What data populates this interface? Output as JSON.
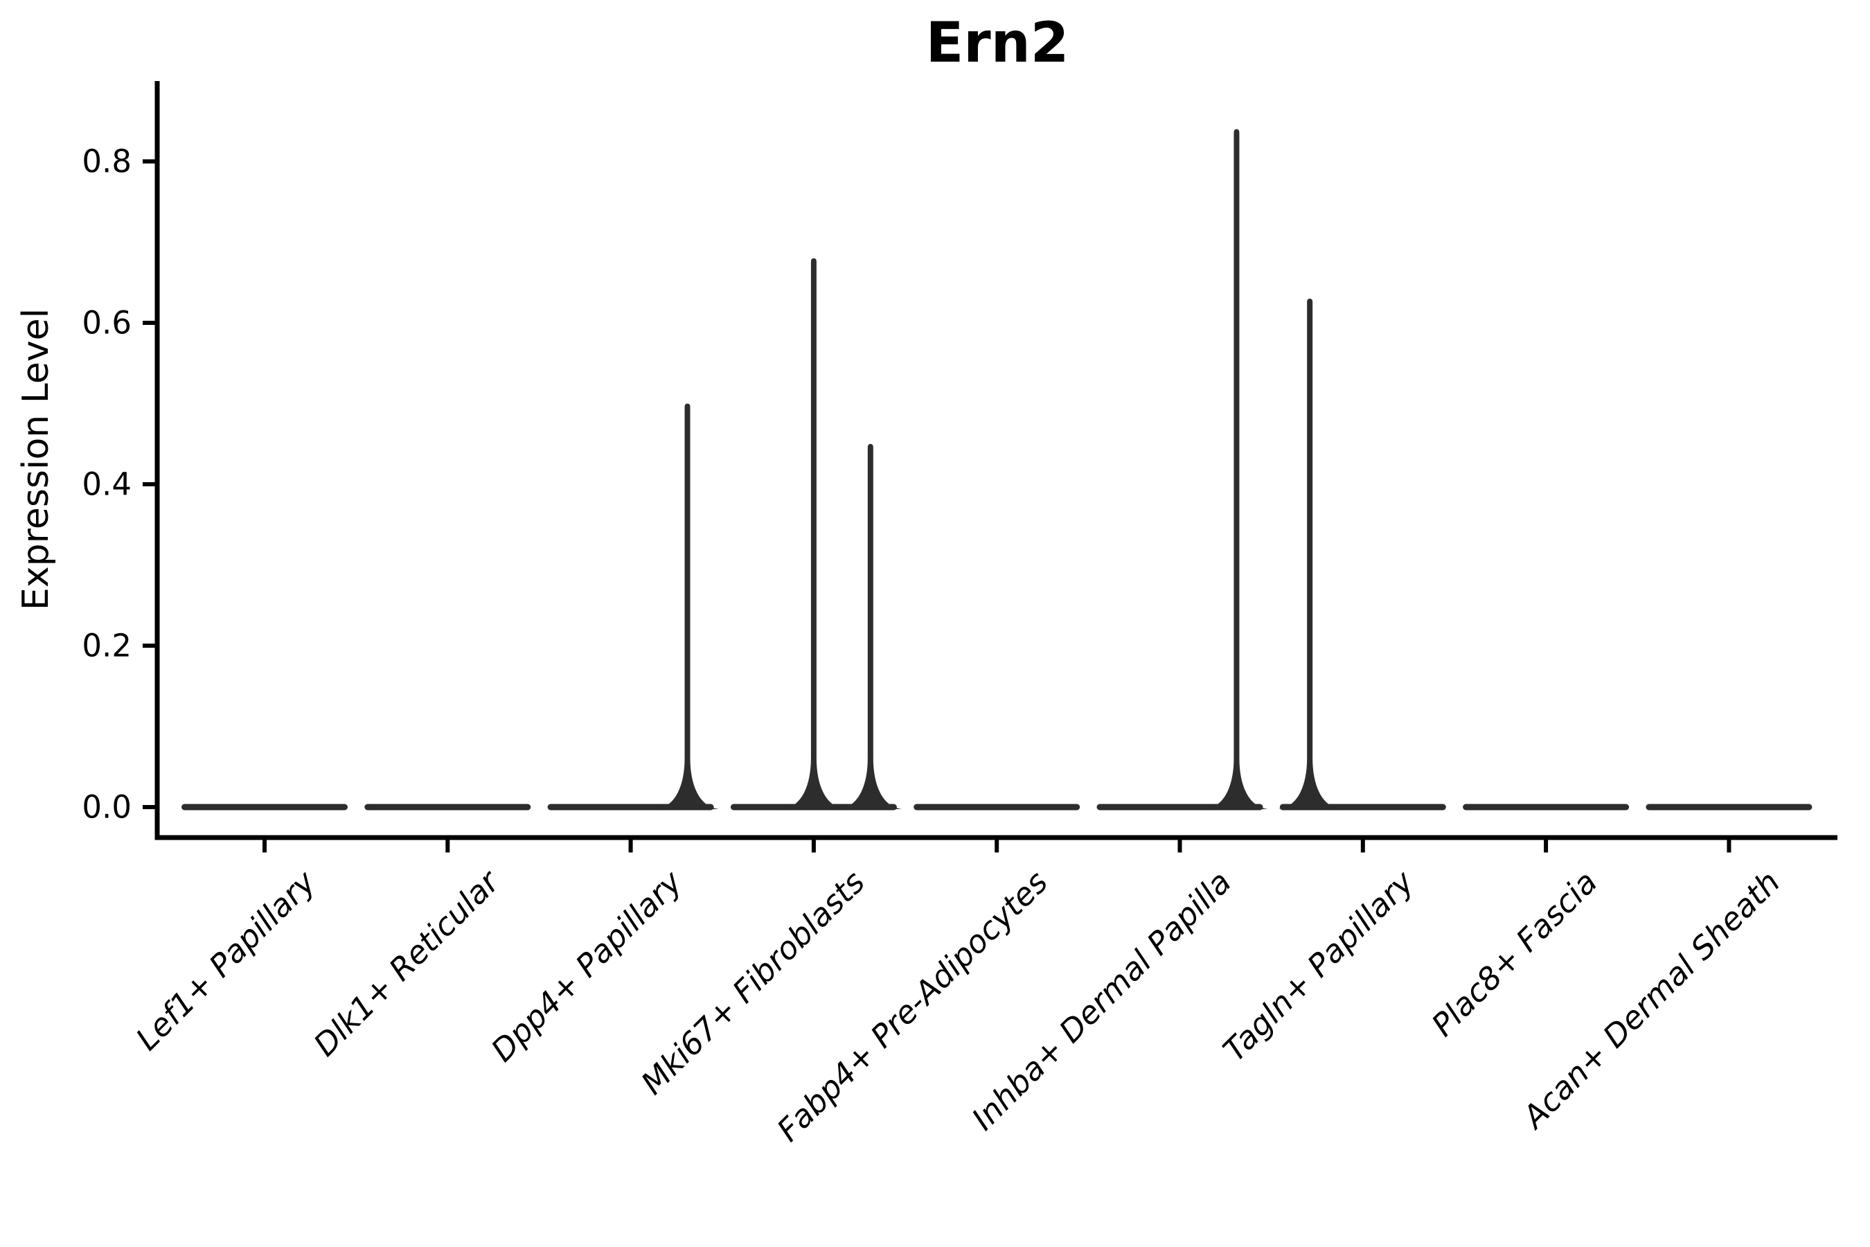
{
  "title": "Ern2",
  "y_axis": {
    "label": "Expression Level",
    "tick_labels": [
      "0.0",
      "0.2",
      "0.4",
      "0.6",
      "0.8"
    ],
    "tick_values": [
      0.0,
      0.2,
      0.4,
      0.6,
      0.8
    ]
  },
  "x_axis": {
    "categories": [
      "Lef1+ Papillary",
      "Dlk1+ Reticular",
      "Dpp4+ Papillary",
      "Mki67+ Fibroblasts",
      "Fabp4+ Pre-Adipocytes",
      "Inhba+ Dermal Papilla",
      "Tagln+ Papillary",
      "Plac8+ Fascia",
      "Acan+ Dermal Sheath"
    ]
  },
  "colors": {
    "violin": "#2d2d2d",
    "axis": "#000000",
    "text": "#000000",
    "background": "#ffffff"
  },
  "chart_data": {
    "type": "violin",
    "title": "Ern2",
    "xlabel": "",
    "ylabel": "Expression Level",
    "categories": [
      "Lef1+ Papillary",
      "Dlk1+ Reticular",
      "Dpp4+ Papillary",
      "Mki67+ Fibroblasts",
      "Fabp4+ Pre-Adipocytes",
      "Inhba+ Dermal Papilla",
      "Tagln+ Papillary",
      "Plac8+ Fascia",
      "Acan+ Dermal Sheath"
    ],
    "y_ticks": [
      0.0,
      0.2,
      0.4,
      0.6,
      0.8
    ],
    "ylim": [
      -0.025,
      0.9
    ],
    "grid": false,
    "legend": "none",
    "description": "Mostly zero expression in all categories (flat violins at 0); thin violin spikes mark maximum expression values.",
    "violins": [
      {
        "category": "Lef1+ Papillary",
        "baseline_value": 0,
        "spikes": []
      },
      {
        "category": "Dlk1+ Reticular",
        "baseline_value": 0,
        "spikes": []
      },
      {
        "category": "Dpp4+ Papillary",
        "baseline_value": 0,
        "spikes": [
          {
            "value": 0.5,
            "dx_frac": 0.31
          }
        ]
      },
      {
        "category": "Mki67+ Fibroblasts",
        "baseline_value": 0,
        "spikes": [
          {
            "value": 0.68,
            "dx_frac": 0.0
          },
          {
            "value": 0.45,
            "dx_frac": 0.31
          }
        ]
      },
      {
        "category": "Fabp4+ Pre-Adipocytes",
        "baseline_value": 0,
        "spikes": []
      },
      {
        "category": "Inhba+ Dermal Papilla",
        "baseline_value": 0,
        "spikes": [
          {
            "value": 0.84,
            "dx_frac": 0.31
          }
        ]
      },
      {
        "category": "Tagln+ Papillary",
        "baseline_value": 0,
        "spikes": [
          {
            "value": 0.63,
            "dx_frac": -0.29
          }
        ]
      },
      {
        "category": "Plac8+ Fascia",
        "baseline_value": 0,
        "spikes": []
      },
      {
        "category": "Acan+ Dermal Sheath",
        "baseline_value": 0,
        "spikes": []
      }
    ]
  }
}
